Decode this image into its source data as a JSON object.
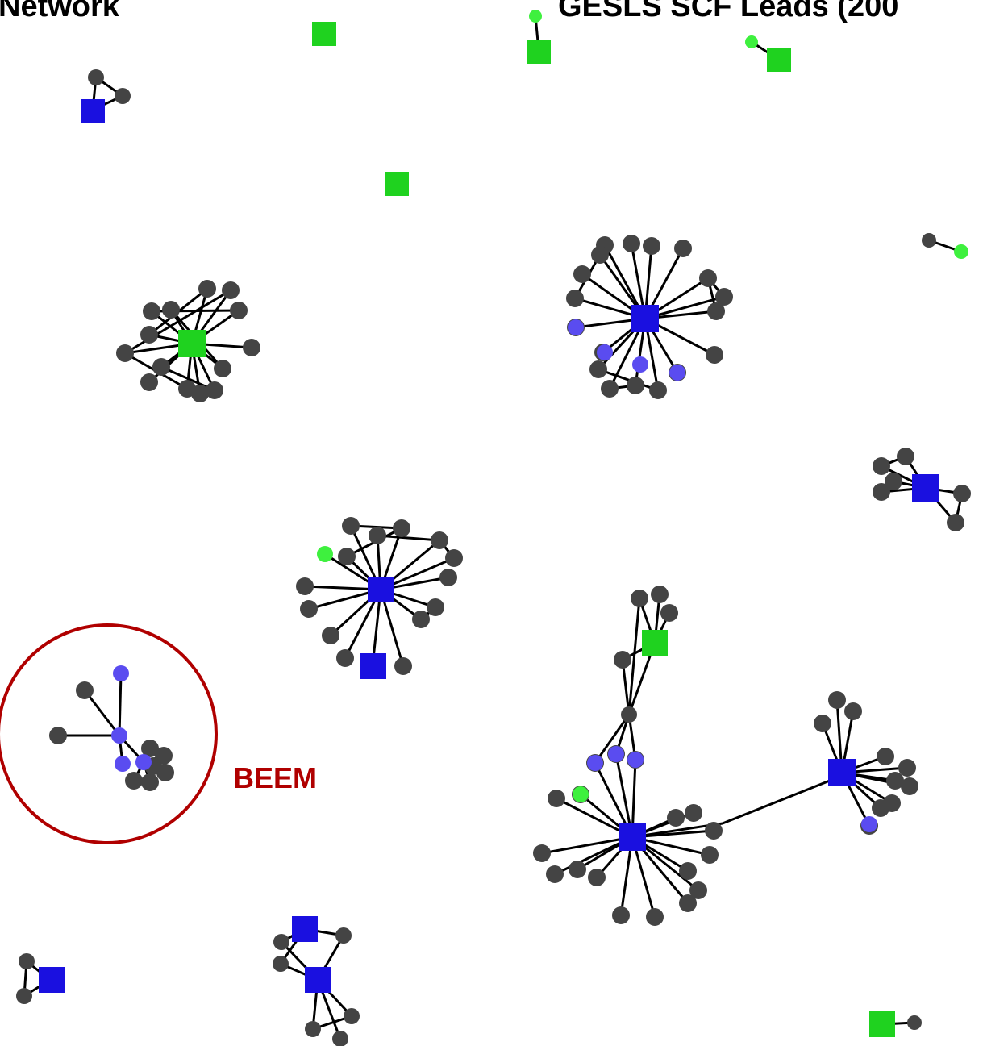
{
  "titles": {
    "left": "Network",
    "right": "GESLS SCF Leads (200"
  },
  "annotation": {
    "label": "BEEM",
    "color": "#b00000"
  },
  "legend_colors": {
    "green_node": "#1fd21f",
    "blue_node": "#1a10e0",
    "gray_node": "#444444",
    "light_blue_node": "#5a4cf0",
    "light_green_node": "#3ef03e",
    "edge": "#000000"
  }
}
